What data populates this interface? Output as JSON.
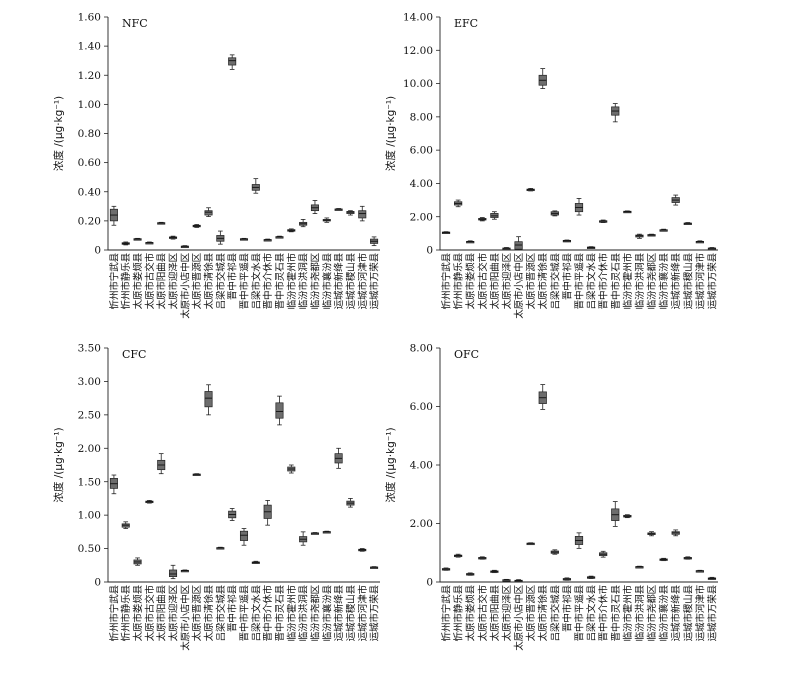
{
  "chart_data": [
    {
      "type": "box",
      "title": "NFC",
      "ylabel": "浓度 /(μg·kg⁻¹)",
      "ylim": [
        0,
        1.6
      ],
      "yticks": [
        "0",
        "0.20",
        "0.40",
        "0.60",
        "0.80",
        "1.00",
        "1.20",
        "1.40",
        "1.60"
      ],
      "categories": [
        "忻州市宁武县",
        "忻州市静乐县",
        "太原市娄烦县",
        "太原市古交市",
        "太原市阳曲县",
        "太原市迎泽区",
        "太原市小店中区",
        "太原市晋源区",
        "太原市清徐县",
        "吕梁市交城县",
        "晋中市祁县",
        "晋中市平遥县",
        "吕梁市文水县",
        "晋中市介休市",
        "晋中市灵石县",
        "临汾市霍州市",
        "临汾市洪洞县",
        "临汾市尧都区",
        "临汾市襄汾县",
        "运城市新绛县",
        "运城市稷山县",
        "运城市河津市",
        "运城市万荣县"
      ],
      "boxes": [
        {
          "min": 0.17,
          "q1": 0.2,
          "med": 0.24,
          "q3": 0.28,
          "max": 0.3
        },
        {
          "min": 0.035,
          "q1": 0.04,
          "med": 0.045,
          "q3": 0.05,
          "max": 0.055
        },
        {
          "min": 0.07,
          "q1": 0.072,
          "med": 0.075,
          "q3": 0.078,
          "max": 0.08
        },
        {
          "min": 0.045,
          "q1": 0.047,
          "med": 0.05,
          "q3": 0.052,
          "max": 0.055
        },
        {
          "min": 0.18,
          "q1": 0.183,
          "med": 0.185,
          "q3": 0.188,
          "max": 0.19
        },
        {
          "min": 0.075,
          "q1": 0.08,
          "med": 0.085,
          "q3": 0.09,
          "max": 0.095
        },
        {
          "min": 0.02,
          "q1": 0.022,
          "med": 0.025,
          "q3": 0.027,
          "max": 0.03
        },
        {
          "min": 0.155,
          "q1": 0.16,
          "med": 0.165,
          "q3": 0.17,
          "max": 0.175
        },
        {
          "min": 0.23,
          "q1": 0.24,
          "med": 0.26,
          "q3": 0.27,
          "max": 0.29
        },
        {
          "min": 0.04,
          "q1": 0.06,
          "med": 0.08,
          "q3": 0.1,
          "max": 0.13
        },
        {
          "min": 1.24,
          "q1": 1.27,
          "med": 1.3,
          "q3": 1.32,
          "max": 1.34
        },
        {
          "min": 0.07,
          "q1": 0.072,
          "med": 0.075,
          "q3": 0.078,
          "max": 0.08
        },
        {
          "min": 0.39,
          "q1": 0.41,
          "med": 0.43,
          "q3": 0.45,
          "max": 0.49
        },
        {
          "min": 0.065,
          "q1": 0.068,
          "med": 0.07,
          "q3": 0.072,
          "max": 0.075
        },
        {
          "min": 0.085,
          "q1": 0.088,
          "med": 0.09,
          "q3": 0.092,
          "max": 0.095
        },
        {
          "min": 0.125,
          "q1": 0.13,
          "med": 0.135,
          "q3": 0.14,
          "max": 0.145
        },
        {
          "min": 0.16,
          "q1": 0.17,
          "med": 0.18,
          "q3": 0.19,
          "max": 0.21
        },
        {
          "min": 0.25,
          "q1": 0.27,
          "med": 0.29,
          "q3": 0.31,
          "max": 0.34
        },
        {
          "min": 0.19,
          "q1": 0.2,
          "med": 0.205,
          "q3": 0.21,
          "max": 0.22
        },
        {
          "min": 0.275,
          "q1": 0.278,
          "med": 0.28,
          "q3": 0.282,
          "max": 0.285
        },
        {
          "min": 0.24,
          "q1": 0.25,
          "med": 0.26,
          "q3": 0.265,
          "max": 0.27
        },
        {
          "min": 0.2,
          "q1": 0.22,
          "med": 0.25,
          "q3": 0.27,
          "max": 0.3
        },
        {
          "min": 0.03,
          "q1": 0.045,
          "med": 0.06,
          "q3": 0.075,
          "max": 0.09
        }
      ]
    },
    {
      "type": "box",
      "title": "EFC",
      "ylabel": "浓度 /(μg·kg⁻¹)",
      "ylim": [
        0,
        14
      ],
      "yticks": [
        "0",
        "2.00",
        "4.00",
        "6.00",
        "8.00",
        "10.00",
        "12.00",
        "14.00"
      ],
      "categories": [
        "忻州市宁武县",
        "忻州市静乐县",
        "太原市娄烦县",
        "太原市古交市",
        "太原市阳曲县",
        "太原市迎泽区",
        "太原市小店中区",
        "太原市晋源区",
        "太原市清徐县",
        "吕梁市交城县",
        "晋中市祁县",
        "晋中市平遥县",
        "吕梁市文水县",
        "晋中市介休市",
        "晋中市灵石县",
        "临汾市霍州市",
        "临汾市洪洞县",
        "临汾市尧都区",
        "临汾市襄汾县",
        "运城市新绛县",
        "运城市稷山县",
        "运城市河津市",
        "运城市万荣县"
      ],
      "boxes": [
        {
          "min": 1.0,
          "q1": 1.02,
          "med": 1.05,
          "q3": 1.08,
          "max": 1.1
        },
        {
          "min": 2.6,
          "q1": 2.7,
          "med": 2.8,
          "q3": 2.9,
          "max": 3.0
        },
        {
          "min": 0.45,
          "q1": 0.47,
          "med": 0.5,
          "q3": 0.52,
          "max": 0.55
        },
        {
          "min": 1.75,
          "q1": 1.8,
          "med": 1.85,
          "q3": 1.9,
          "max": 1.95
        },
        {
          "min": 1.85,
          "q1": 1.95,
          "med": 2.05,
          "q3": 2.2,
          "max": 2.3
        },
        {
          "min": 0.05,
          "q1": 0.07,
          "med": 0.1,
          "q3": 0.12,
          "max": 0.15
        },
        {
          "min": 0.0,
          "q1": 0.05,
          "med": 0.3,
          "q3": 0.5,
          "max": 0.8
        },
        {
          "min": 3.55,
          "q1": 3.58,
          "med": 3.62,
          "q3": 3.66,
          "max": 3.7
        },
        {
          "min": 9.7,
          "q1": 9.9,
          "med": 10.2,
          "q3": 10.5,
          "max": 10.9
        },
        {
          "min": 2.05,
          "q1": 2.1,
          "med": 2.2,
          "q3": 2.3,
          "max": 2.35
        },
        {
          "min": 0.5,
          "q1": 0.52,
          "med": 0.55,
          "q3": 0.58,
          "max": 0.6
        },
        {
          "min": 2.1,
          "q1": 2.3,
          "med": 2.55,
          "q3": 2.8,
          "max": 3.1
        },
        {
          "min": 0.1,
          "q1": 0.12,
          "med": 0.15,
          "q3": 0.18,
          "max": 0.2
        },
        {
          "min": 1.65,
          "q1": 1.7,
          "med": 1.73,
          "q3": 1.76,
          "max": 1.8
        },
        {
          "min": 7.7,
          "q1": 8.1,
          "med": 8.35,
          "q3": 8.6,
          "max": 8.8
        },
        {
          "min": 2.25,
          "q1": 2.28,
          "med": 2.3,
          "q3": 2.33,
          "max": 2.35
        },
        {
          "min": 0.7,
          "q1": 0.78,
          "med": 0.85,
          "q3": 0.9,
          "max": 0.95
        },
        {
          "min": 0.85,
          "q1": 0.87,
          "med": 0.9,
          "q3": 0.93,
          "max": 0.95
        },
        {
          "min": 1.15,
          "q1": 1.18,
          "med": 1.2,
          "q3": 1.22,
          "max": 1.25
        },
        {
          "min": 2.7,
          "q1": 2.85,
          "med": 3.0,
          "q3": 3.15,
          "max": 3.3
        },
        {
          "min": 1.55,
          "q1": 1.58,
          "med": 1.6,
          "q3": 1.62,
          "max": 1.65
        },
        {
          "min": 0.45,
          "q1": 0.47,
          "med": 0.5,
          "q3": 0.52,
          "max": 0.55
        },
        {
          "min": 0.05,
          "q1": 0.07,
          "med": 0.1,
          "q3": 0.12,
          "max": 0.15
        }
      ]
    },
    {
      "type": "box",
      "title": "CFC",
      "ylabel": "浓度 /(μg·kg⁻¹)",
      "ylim": [
        0,
        3.5
      ],
      "yticks": [
        "0",
        "0.50",
        "1.00",
        "1.50",
        "2.00",
        "2.50",
        "3.00",
        "3.50"
      ],
      "categories": [
        "忻州市宁武县",
        "忻州市静乐县",
        "太原市娄烦县",
        "太原市古交市",
        "太原市阳曲县",
        "太原市迎泽区",
        "太原市小店中区",
        "太原市晋源区",
        "太原市清徐县",
        "吕梁市交城县",
        "晋中市祁县",
        "晋中市平遥县",
        "吕梁市文水县",
        "晋中市介休市",
        "晋中市灵石县",
        "临汾市霍州市",
        "临汾市洪洞县",
        "临汾市尧都区",
        "临汾市襄汾县",
        "运城市新绛县",
        "运城市稷山县",
        "运城市河津市",
        "运城市万荣县"
      ],
      "boxes": [
        {
          "min": 1.32,
          "q1": 1.4,
          "med": 1.47,
          "q3": 1.55,
          "max": 1.6
        },
        {
          "min": 0.8,
          "q1": 0.82,
          "med": 0.85,
          "q3": 0.87,
          "max": 0.9
        },
        {
          "min": 0.25,
          "q1": 0.27,
          "med": 0.3,
          "q3": 0.33,
          "max": 0.36
        },
        {
          "min": 1.18,
          "q1": 1.19,
          "med": 1.2,
          "q3": 1.21,
          "max": 1.22
        },
        {
          "min": 1.62,
          "q1": 1.68,
          "med": 1.75,
          "q3": 1.82,
          "max": 1.92
        },
        {
          "min": 0.05,
          "q1": 0.08,
          "med": 0.12,
          "q3": 0.18,
          "max": 0.25
        },
        {
          "min": 0.16,
          "q1": 0.165,
          "med": 0.17,
          "q3": 0.175,
          "max": 0.18
        },
        {
          "min": 1.6,
          "q1": 1.605,
          "med": 1.61,
          "q3": 1.615,
          "max": 1.62
        },
        {
          "min": 2.5,
          "q1": 2.62,
          "med": 2.75,
          "q3": 2.85,
          "max": 2.95
        },
        {
          "min": 0.5,
          "q1": 0.505,
          "med": 0.51,
          "q3": 0.515,
          "max": 0.52
        },
        {
          "min": 0.92,
          "q1": 0.96,
          "med": 1.01,
          "q3": 1.06,
          "max": 1.1
        },
        {
          "min": 0.55,
          "q1": 0.62,
          "med": 0.7,
          "q3": 0.76,
          "max": 0.8
        },
        {
          "min": 0.28,
          "q1": 0.285,
          "med": 0.29,
          "q3": 0.3,
          "max": 0.31
        },
        {
          "min": 0.85,
          "q1": 0.95,
          "med": 1.05,
          "q3": 1.15,
          "max": 1.22
        },
        {
          "min": 2.35,
          "q1": 2.45,
          "med": 2.55,
          "q3": 2.68,
          "max": 2.78
        },
        {
          "min": 1.63,
          "q1": 1.66,
          "med": 1.69,
          "q3": 1.72,
          "max": 1.75
        },
        {
          "min": 0.55,
          "q1": 0.6,
          "med": 0.64,
          "q3": 0.68,
          "max": 0.75
        },
        {
          "min": 0.72,
          "q1": 0.725,
          "med": 0.73,
          "q3": 0.735,
          "max": 0.74
        },
        {
          "min": 0.74,
          "q1": 0.745,
          "med": 0.75,
          "q3": 0.755,
          "max": 0.76
        },
        {
          "min": 1.7,
          "q1": 1.78,
          "med": 1.85,
          "q3": 1.92,
          "max": 2.0
        },
        {
          "min": 1.12,
          "q1": 1.15,
          "med": 1.18,
          "q3": 1.21,
          "max": 1.25
        },
        {
          "min": 0.46,
          "q1": 0.47,
          "med": 0.48,
          "q3": 0.49,
          "max": 0.5
        },
        {
          "min": 0.21,
          "q1": 0.215,
          "med": 0.22,
          "q3": 0.225,
          "max": 0.23
        }
      ]
    },
    {
      "type": "box",
      "title": "OFC",
      "ylabel": "浓度 /(μg·kg⁻¹)",
      "ylim": [
        0,
        8
      ],
      "yticks": [
        "0",
        "2.00",
        "4.00",
        "6.00",
        "8.00"
      ],
      "categories": [
        "忻州市宁武县",
        "忻州市静乐县",
        "太原市娄烦县",
        "太原市古交市",
        "太原市阳曲县",
        "太原市迎泽区",
        "太原市小店中区",
        "太原市晋源区",
        "太原市清徐县",
        "吕梁市交城县",
        "晋中市祁县",
        "晋中市平遥县",
        "吕梁市文水县",
        "晋中市介休市",
        "晋中市灵石县",
        "临汾市霍州市",
        "临汾市洪洞县",
        "临汾市尧都区",
        "临汾市襄汾县",
        "运城市新绛县",
        "运城市稷山县",
        "运城市河津市",
        "运城市万荣县"
      ],
      "boxes": [
        {
          "min": 0.4,
          "q1": 0.42,
          "med": 0.44,
          "q3": 0.46,
          "max": 0.48
        },
        {
          "min": 0.85,
          "q1": 0.87,
          "med": 0.9,
          "q3": 0.92,
          "max": 0.95
        },
        {
          "min": 0.23,
          "q1": 0.25,
          "med": 0.27,
          "q3": 0.29,
          "max": 0.31
        },
        {
          "min": 0.78,
          "q1": 0.8,
          "med": 0.82,
          "q3": 0.84,
          "max": 0.86
        },
        {
          "min": 0.32,
          "q1": 0.34,
          "med": 0.36,
          "q3": 0.38,
          "max": 0.4
        },
        {
          "min": 0.05,
          "q1": 0.06,
          "med": 0.07,
          "q3": 0.08,
          "max": 0.09
        },
        {
          "min": 0.0,
          "q1": 0.02,
          "med": 0.04,
          "q3": 0.06,
          "max": 0.08
        },
        {
          "min": 1.3,
          "q1": 1.31,
          "med": 1.32,
          "q3": 1.33,
          "max": 1.34
        },
        {
          "min": 5.9,
          "q1": 6.1,
          "med": 6.3,
          "q3": 6.5,
          "max": 6.75
        },
        {
          "min": 0.95,
          "q1": 0.98,
          "med": 1.02,
          "q3": 1.06,
          "max": 1.1
        },
        {
          "min": 0.06,
          "q1": 0.08,
          "med": 0.1,
          "q3": 0.12,
          "max": 0.14
        },
        {
          "min": 1.15,
          "q1": 1.28,
          "med": 1.42,
          "q3": 1.56,
          "max": 1.68
        },
        {
          "min": 0.12,
          "q1": 0.14,
          "med": 0.16,
          "q3": 0.18,
          "max": 0.2
        },
        {
          "min": 0.85,
          "q1": 0.9,
          "med": 0.95,
          "q3": 1.0,
          "max": 1.05
        },
        {
          "min": 1.9,
          "q1": 2.1,
          "med": 2.3,
          "q3": 2.5,
          "max": 2.75
        },
        {
          "min": 2.2,
          "q1": 2.22,
          "med": 2.25,
          "q3": 2.28,
          "max": 2.3
        },
        {
          "min": 0.5,
          "q1": 0.51,
          "med": 0.52,
          "q3": 0.53,
          "max": 0.54
        },
        {
          "min": 1.58,
          "q1": 1.62,
          "med": 1.65,
          "q3": 1.68,
          "max": 1.72
        },
        {
          "min": 0.73,
          "q1": 0.75,
          "med": 0.77,
          "q3": 0.79,
          "max": 0.81
        },
        {
          "min": 1.58,
          "q1": 1.63,
          "med": 1.68,
          "q3": 1.72,
          "max": 1.78
        },
        {
          "min": 0.78,
          "q1": 0.8,
          "med": 0.82,
          "q3": 0.84,
          "max": 0.86
        },
        {
          "min": 0.35,
          "q1": 0.37,
          "med": 0.38,
          "q3": 0.39,
          "max": 0.4
        },
        {
          "min": 0.09,
          "q1": 0.1,
          "med": 0.12,
          "q3": 0.14,
          "max": 0.16
        }
      ]
    }
  ]
}
